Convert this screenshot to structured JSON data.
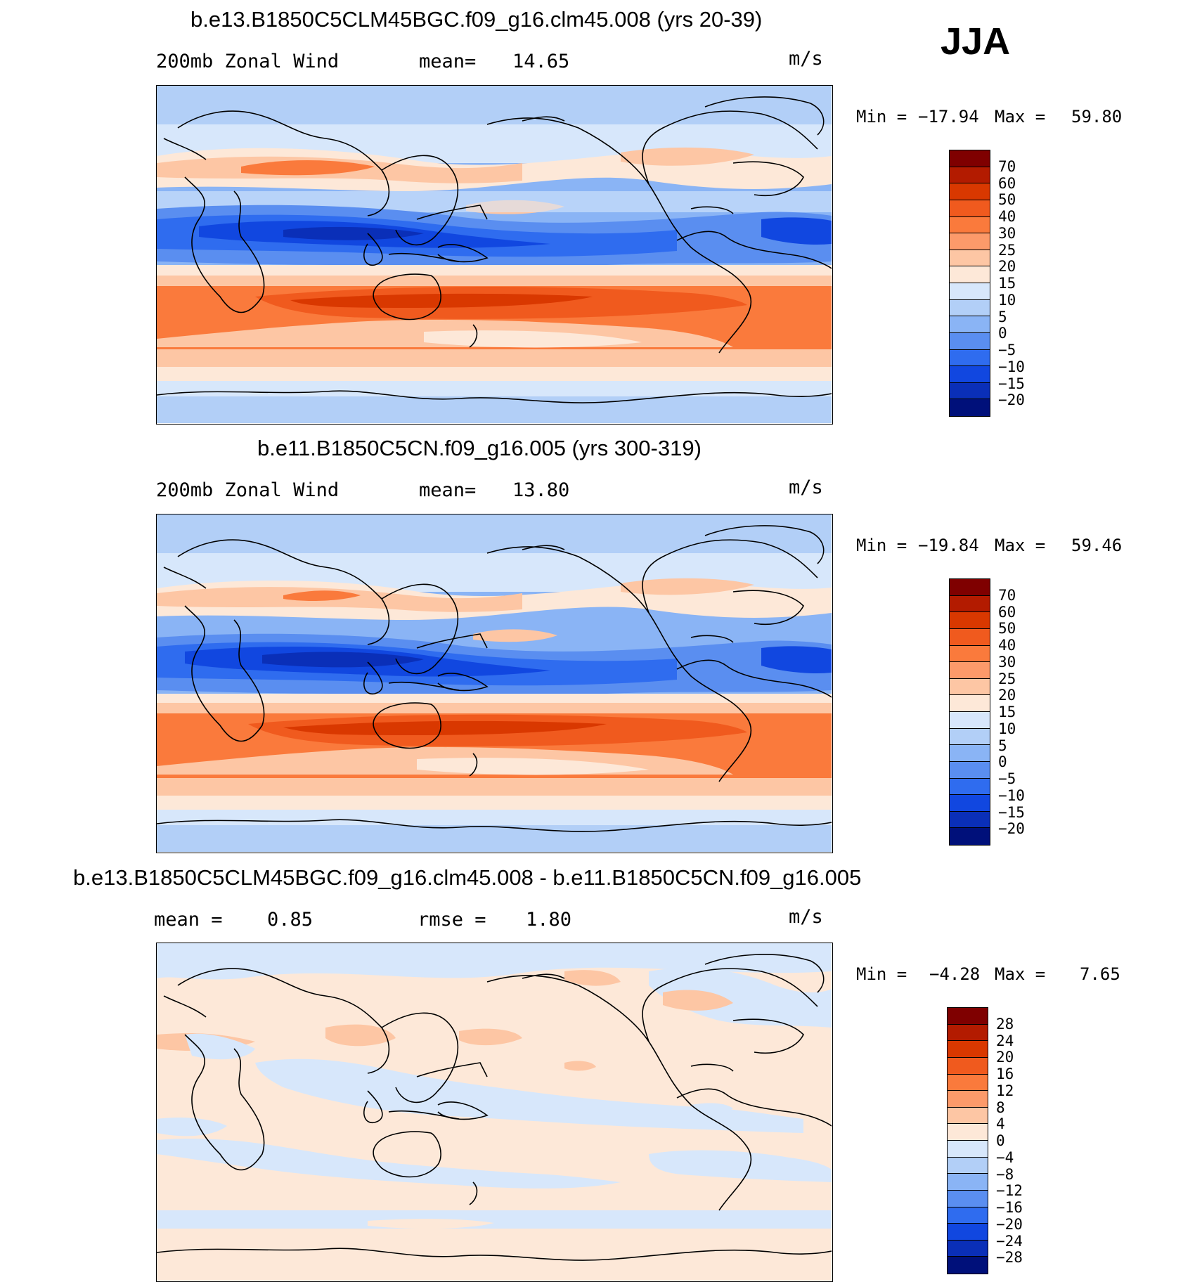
{
  "season": "JJA",
  "panels": [
    {
      "title": "b.e13.B1850C5CLM45BGC.f09_g16.clm45.008 (yrs 20-39)",
      "left_label": "200mb Zonal Wind",
      "mid_label": "mean=",
      "mid_value": "14.65",
      "units": "m/s",
      "min_label": "Min =",
      "min_value": "−17.94",
      "max_label": "Max =",
      "max_value": "59.80"
    },
    {
      "title": "b.e11.B1850C5CN.f09_g16.005 (yrs 300-319)",
      "left_label": "200mb Zonal Wind",
      "mid_label": "mean=",
      "mid_value": "13.80",
      "units": "m/s",
      "min_label": "Min =",
      "min_value": "−19.84",
      "max_label": "Max =",
      "max_value": "59.46"
    },
    {
      "title": "b.e13.B1850C5CLM45BGC.f09_g16.clm45.008 - b.e11.B1850C5CN.f09_g16.005",
      "left_label": "mean =",
      "left_value": "0.85",
      "mid_label": "rmse =",
      "mid_value": "1.80",
      "units": "m/s",
      "min_label": "Min =",
      "min_value": "−4.28",
      "max_label": "Max =",
      "max_value": "7.65"
    }
  ],
  "colorbars": {
    "wind": {
      "labels": [
        "70",
        "60",
        "50",
        "40",
        "30",
        "25",
        "20",
        "15",
        "10",
        "5",
        "0",
        "−5",
        "−10",
        "−15",
        "−20"
      ],
      "colors": [
        "#7f0000",
        "#b31b00",
        "#d93800",
        "#f05a1e",
        "#fa7a3c",
        "#fc9a6a",
        "#fdc6a4",
        "#fde8d8",
        "#d7e7fb",
        "#b2cff7",
        "#8ab4f5",
        "#5a8ef0",
        "#2f6cef",
        "#1147e0",
        "#0a2fb8",
        "#00107a"
      ]
    },
    "diff": {
      "labels": [
        "28",
        "24",
        "20",
        "16",
        "12",
        "8",
        "4",
        "0",
        "−4",
        "−8",
        "−12",
        "−16",
        "−20",
        "−24",
        "−28"
      ],
      "colors": [
        "#7f0000",
        "#b31b00",
        "#d93800",
        "#f05a1e",
        "#fa7a3c",
        "#fc9a6a",
        "#fdc6a4",
        "#fde8d8",
        "#d7e7fb",
        "#b2cff7",
        "#8ab4f5",
        "#5a8ef0",
        "#2f6cef",
        "#1147e0",
        "#0a2fb8",
        "#00107a"
      ]
    }
  },
  "chart_data": [
    {
      "type": "heatmap",
      "title": "b.e13.B1850C5CLM45BGC.f09_g16.clm45.008 (yrs 20-39)",
      "variable": "200mb Zonal Wind",
      "units": "m/s",
      "mean": 14.65,
      "min": -17.94,
      "max": 59.8,
      "levels": [
        -20,
        -15,
        -10,
        -5,
        0,
        5,
        10,
        15,
        20,
        25,
        30,
        40,
        50,
        60,
        70
      ]
    },
    {
      "type": "heatmap",
      "title": "b.e11.B1850C5CN.f09_g16.005 (yrs 300-319)",
      "variable": "200mb Zonal Wind",
      "units": "m/s",
      "mean": 13.8,
      "min": -19.84,
      "max": 59.46,
      "levels": [
        -20,
        -15,
        -10,
        -5,
        0,
        5,
        10,
        15,
        20,
        25,
        30,
        40,
        50,
        60,
        70
      ]
    },
    {
      "type": "heatmap",
      "title": "b.e13.B1850C5CLM45BGC.f09_g16.clm45.008 - b.e11.B1850C5CN.f09_g16.005",
      "units": "m/s",
      "mean": 0.85,
      "rmse": 1.8,
      "min": -4.28,
      "max": 7.65,
      "levels": [
        -28,
        -24,
        -20,
        -16,
        -12,
        -8,
        -4,
        0,
        4,
        8,
        12,
        16,
        20,
        24,
        28
      ]
    }
  ]
}
